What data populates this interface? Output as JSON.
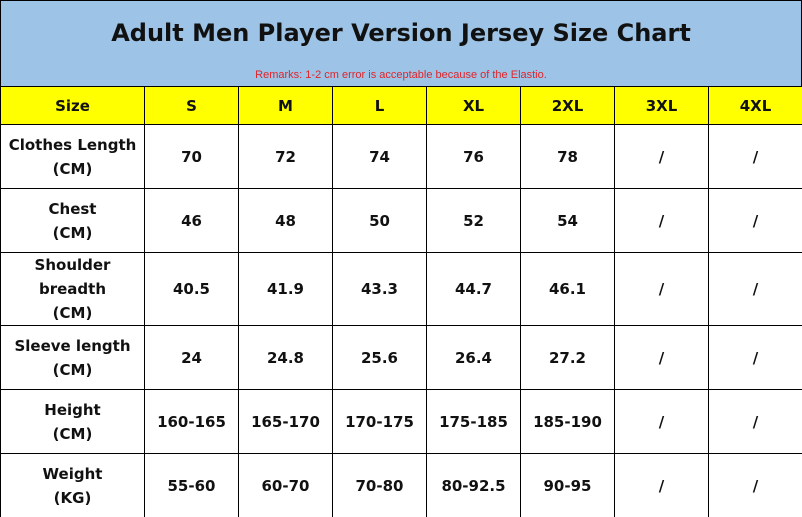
{
  "header": {
    "title": "Adult Men Player Version Jersey Size Chart",
    "remark": "Remarks: 1-2 cm error is acceptable because of the Elastio."
  },
  "table": {
    "columns": [
      "Size",
      "S",
      "M",
      "L",
      "XL",
      "2XL",
      "3XL",
      "4XL"
    ],
    "rows": [
      {
        "label": [
          "Clothes Length",
          "(CM)"
        ],
        "cells": [
          "70",
          "72",
          "74",
          "76",
          "78",
          "/",
          "/"
        ]
      },
      {
        "label": [
          "Chest",
          "(CM)"
        ],
        "cells": [
          "46",
          "48",
          "50",
          "52",
          "54",
          "/",
          "/"
        ]
      },
      {
        "label": [
          "Shoulder breadth",
          "(CM)"
        ],
        "cells": [
          "40.5",
          "41.9",
          "43.3",
          "44.7",
          "46.1",
          "/",
          "/"
        ]
      },
      {
        "label": [
          "Sleeve length",
          "(CM)"
        ],
        "cells": [
          "24",
          "24.8",
          "25.6",
          "26.4",
          "27.2",
          "/",
          "/"
        ]
      },
      {
        "label": [
          "Height",
          "(CM)"
        ],
        "cells": [
          "160-165",
          "165-170",
          "170-175",
          "175-185",
          "185-190",
          "/",
          "/"
        ]
      },
      {
        "label": [
          "Weight",
          "(KG)"
        ],
        "cells": [
          "55-60",
          "60-70",
          "70-80",
          "80-92.5",
          "90-95",
          "/",
          "/"
        ]
      }
    ]
  }
}
